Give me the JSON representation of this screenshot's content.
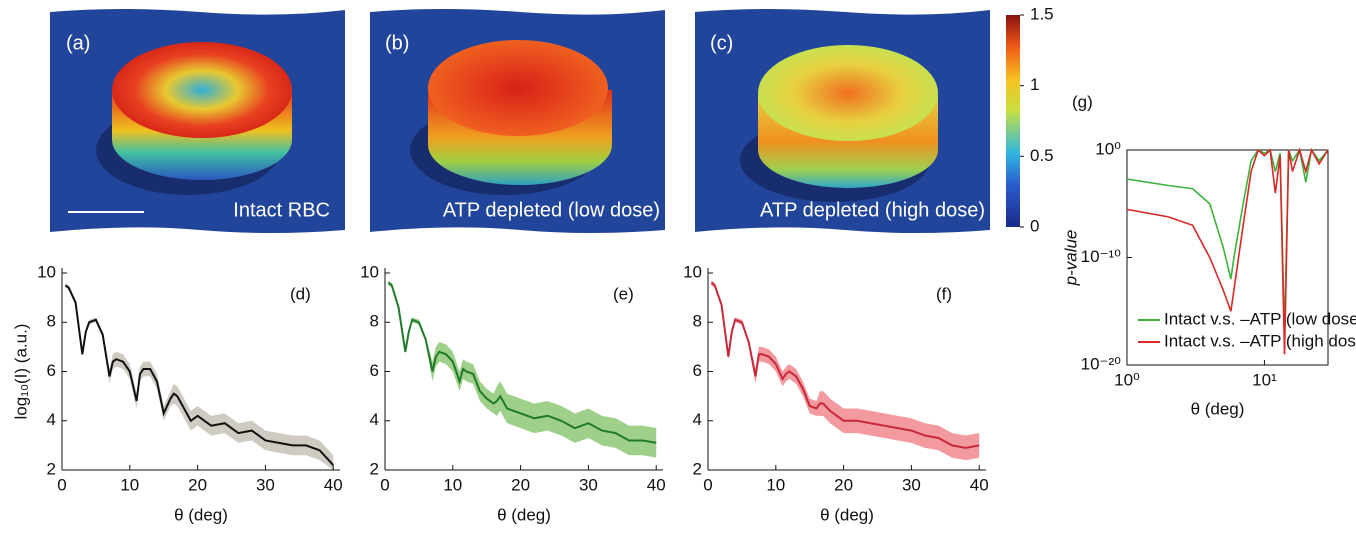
{
  "images": [
    {
      "label": "(a)",
      "caption": "Intact RBC"
    },
    {
      "label": "(b)",
      "caption": "ATP depleted (low dose)"
    },
    {
      "label": "(c)",
      "caption": "ATP depleted (high dose)"
    }
  ],
  "colorbar": {
    "lim": [
      0,
      1.5
    ],
    "ticks": [
      0,
      0.5,
      1,
      1.5
    ]
  },
  "chart_data": [
    {
      "type": "line",
      "panel_label": "(d)",
      "ylabel": "log₁₀(I) (a.u.)",
      "xlabel": "θ (deg)",
      "color": "#111111",
      "band_color": "#cfcbc3",
      "x": [
        0.5,
        1,
        2,
        3,
        3.5,
        4,
        5,
        6,
        7,
        7.5,
        8,
        9,
        10,
        11,
        11.5,
        12,
        13,
        14,
        15,
        16,
        16.5,
        17,
        18,
        19,
        20,
        22,
        24,
        26,
        28,
        30,
        32,
        34,
        36,
        38,
        40
      ],
      "values": [
        9.5,
        9.4,
        8.8,
        6.7,
        7.6,
        8.0,
        8.1,
        7.5,
        5.8,
        6.4,
        6.5,
        6.4,
        6.0,
        4.8,
        5.9,
        6.1,
        6.1,
        5.6,
        4.3,
        4.9,
        5.1,
        5.0,
        4.5,
        4.0,
        4.2,
        3.8,
        3.9,
        3.5,
        3.6,
        3.2,
        3.1,
        3.0,
        3.0,
        2.8,
        2.2
      ],
      "lower": [
        9.4,
        9.3,
        8.7,
        6.6,
        7.5,
        7.9,
        8.0,
        7.4,
        5.5,
        6.1,
        6.2,
        6.1,
        5.7,
        4.5,
        5.6,
        5.8,
        5.8,
        5.3,
        4.0,
        4.6,
        4.7,
        4.6,
        4.1,
        3.6,
        3.8,
        3.4,
        3.5,
        3.1,
        3.2,
        2.8,
        2.7,
        2.6,
        2.6,
        2.4,
        2.0
      ],
      "upper": [
        9.6,
        9.5,
        8.9,
        6.8,
        7.7,
        8.1,
        8.2,
        7.6,
        6.1,
        6.7,
        6.8,
        6.7,
        6.3,
        5.1,
        6.2,
        6.4,
        6.4,
        5.9,
        4.6,
        5.2,
        5.5,
        5.4,
        4.9,
        4.4,
        4.6,
        4.2,
        4.3,
        3.9,
        4.0,
        3.6,
        3.5,
        3.4,
        3.4,
        3.2,
        2.6
      ],
      "xlim": [
        0,
        41
      ],
      "ylim": [
        2,
        10
      ],
      "xticks": [
        0,
        10,
        20,
        30,
        40
      ],
      "yticks": [
        2,
        4,
        6,
        8,
        10
      ]
    },
    {
      "type": "line",
      "panel_label": "(e)",
      "xlabel": "θ (deg)",
      "color": "#1f7a2a",
      "band_color": "#9fd08a",
      "x": [
        0.5,
        1,
        2,
        3,
        3.5,
        4,
        5,
        6,
        7,
        7.5,
        8,
        9,
        10,
        11,
        11.5,
        12,
        13,
        14,
        15,
        16,
        16.5,
        17,
        18,
        19,
        20,
        22,
        24,
        26,
        28,
        30,
        32,
        34,
        36,
        38,
        40
      ],
      "values": [
        9.6,
        9.5,
        8.6,
        6.8,
        7.6,
        8.1,
        8.0,
        7.3,
        6.0,
        6.6,
        6.8,
        6.7,
        6.4,
        5.6,
        6.1,
        6.0,
        5.9,
        5.2,
        4.9,
        4.7,
        4.8,
        5.0,
        4.5,
        4.4,
        4.3,
        4.1,
        4.2,
        4.0,
        3.7,
        3.9,
        3.6,
        3.5,
        3.2,
        3.2,
        3.1
      ],
      "lower": [
        9.5,
        9.4,
        8.5,
        6.7,
        7.5,
        8.0,
        7.9,
        7.2,
        5.6,
        6.2,
        6.4,
        6.3,
        6.0,
        5.2,
        5.7,
        5.6,
        5.5,
        4.8,
        4.5,
        4.3,
        4.2,
        4.4,
        3.9,
        3.8,
        3.7,
        3.5,
        3.6,
        3.4,
        3.1,
        3.3,
        3.0,
        2.9,
        2.6,
        2.6,
        2.5
      ],
      "upper": [
        9.7,
        9.6,
        8.7,
        6.9,
        7.7,
        8.2,
        8.1,
        7.4,
        6.4,
        7.0,
        7.2,
        7.1,
        6.8,
        6.0,
        6.5,
        6.4,
        6.3,
        5.6,
        5.3,
        5.1,
        5.4,
        5.6,
        5.1,
        5.0,
        4.9,
        4.7,
        4.8,
        4.6,
        4.3,
        4.5,
        4.2,
        4.1,
        3.8,
        3.8,
        3.7
      ],
      "xlim": [
        0,
        41
      ],
      "ylim": [
        2,
        10
      ],
      "xticks": [
        0,
        10,
        20,
        30,
        40
      ],
      "yticks": [
        2,
        4,
        6,
        8,
        10
      ]
    },
    {
      "type": "line",
      "panel_label": "(f)",
      "xlabel": "θ (deg)",
      "color": "#c8283a",
      "band_color": "#f29aa0",
      "x": [
        0.5,
        1,
        2,
        3,
        3.5,
        4,
        5,
        6,
        7,
        7.5,
        8,
        9,
        10,
        11,
        11.5,
        12,
        13,
        14,
        15,
        16,
        16.5,
        17,
        18,
        19,
        20,
        22,
        24,
        26,
        28,
        30,
        32,
        34,
        36,
        38,
        40
      ],
      "values": [
        9.6,
        9.5,
        8.7,
        6.6,
        7.6,
        8.1,
        8.0,
        7.2,
        5.8,
        6.7,
        6.7,
        6.6,
        6.3,
        5.7,
        5.9,
        6.0,
        5.8,
        5.3,
        4.6,
        4.5,
        4.7,
        4.7,
        4.4,
        4.2,
        4.0,
        4.0,
        3.9,
        3.8,
        3.7,
        3.6,
        3.4,
        3.3,
        3.0,
        2.9,
        3.0
      ],
      "lower": [
        9.5,
        9.4,
        8.6,
        6.5,
        7.5,
        8.0,
        7.9,
        7.1,
        5.5,
        6.4,
        6.4,
        6.3,
        6.0,
        5.4,
        5.6,
        5.7,
        5.5,
        5.0,
        4.3,
        4.2,
        4.2,
        4.2,
        3.9,
        3.7,
        3.5,
        3.5,
        3.4,
        3.3,
        3.2,
        3.1,
        2.9,
        2.8,
        2.5,
        2.4,
        2.5
      ],
      "upper": [
        9.7,
        9.6,
        8.8,
        6.7,
        7.7,
        8.2,
        8.1,
        7.3,
        6.1,
        7.0,
        7.0,
        6.9,
        6.6,
        6.0,
        6.2,
        6.3,
        6.1,
        5.6,
        4.9,
        4.8,
        5.2,
        5.2,
        4.9,
        4.7,
        4.5,
        4.5,
        4.4,
        4.3,
        4.2,
        4.1,
        3.9,
        3.8,
        3.5,
        3.4,
        3.5
      ],
      "xlim": [
        0,
        41
      ],
      "ylim": [
        2,
        10
      ],
      "xticks": [
        0,
        10,
        20,
        30,
        40
      ],
      "yticks": [
        2,
        4,
        6,
        8,
        10
      ]
    },
    {
      "type": "loglog",
      "panel_label": "(g)",
      "ylabel": "p-value",
      "xlabel": "θ (deg)",
      "legend": "lower right",
      "x": [
        1,
        2,
        3,
        4,
        5,
        5.7,
        6,
        7,
        8,
        9,
        10,
        11,
        12,
        13,
        14,
        15,
        16,
        18,
        20,
        22,
        25,
        29
      ],
      "series": [
        {
          "name": "Intact v.s. –ATP (low dose)",
          "color": "#3cb43c",
          "values": [
            0.002,
            0.0005,
            0.00025,
            1e-05,
            1e-09,
            1e-12,
            1e-10,
            1e-05,
            0.1,
            1,
            0.5,
            1,
            0.01,
            0.5,
            1e-17,
            1,
            0.1,
            1,
            0.001,
            1,
            0.1,
            1
          ]
        },
        {
          "name": "Intact v.s. –ATP (high dose)",
          "color": "#d82828",
          "values": [
            3e-06,
            6e-07,
            1e-07,
            1e-10,
            1e-13,
            1e-15,
            1e-13,
            1e-07,
            0.01,
            1,
            0.3,
            1,
            0.0001,
            0.3,
            1e-19,
            1,
            0.01,
            1,
            0.01,
            1,
            0.05,
            1
          ]
        }
      ],
      "xlim": [
        1,
        29
      ],
      "ylim": [
        1e-20,
        1
      ],
      "xticks": [
        {
          "value": 1,
          "label": "10⁰"
        },
        {
          "value": 10,
          "label": "10¹"
        }
      ],
      "yticks": [
        {
          "value": 1e-20,
          "label": "10⁻²⁰"
        },
        {
          "value": 1e-10,
          "label": "10⁻¹⁰"
        },
        {
          "value": 1,
          "label": "10⁰"
        }
      ]
    }
  ]
}
